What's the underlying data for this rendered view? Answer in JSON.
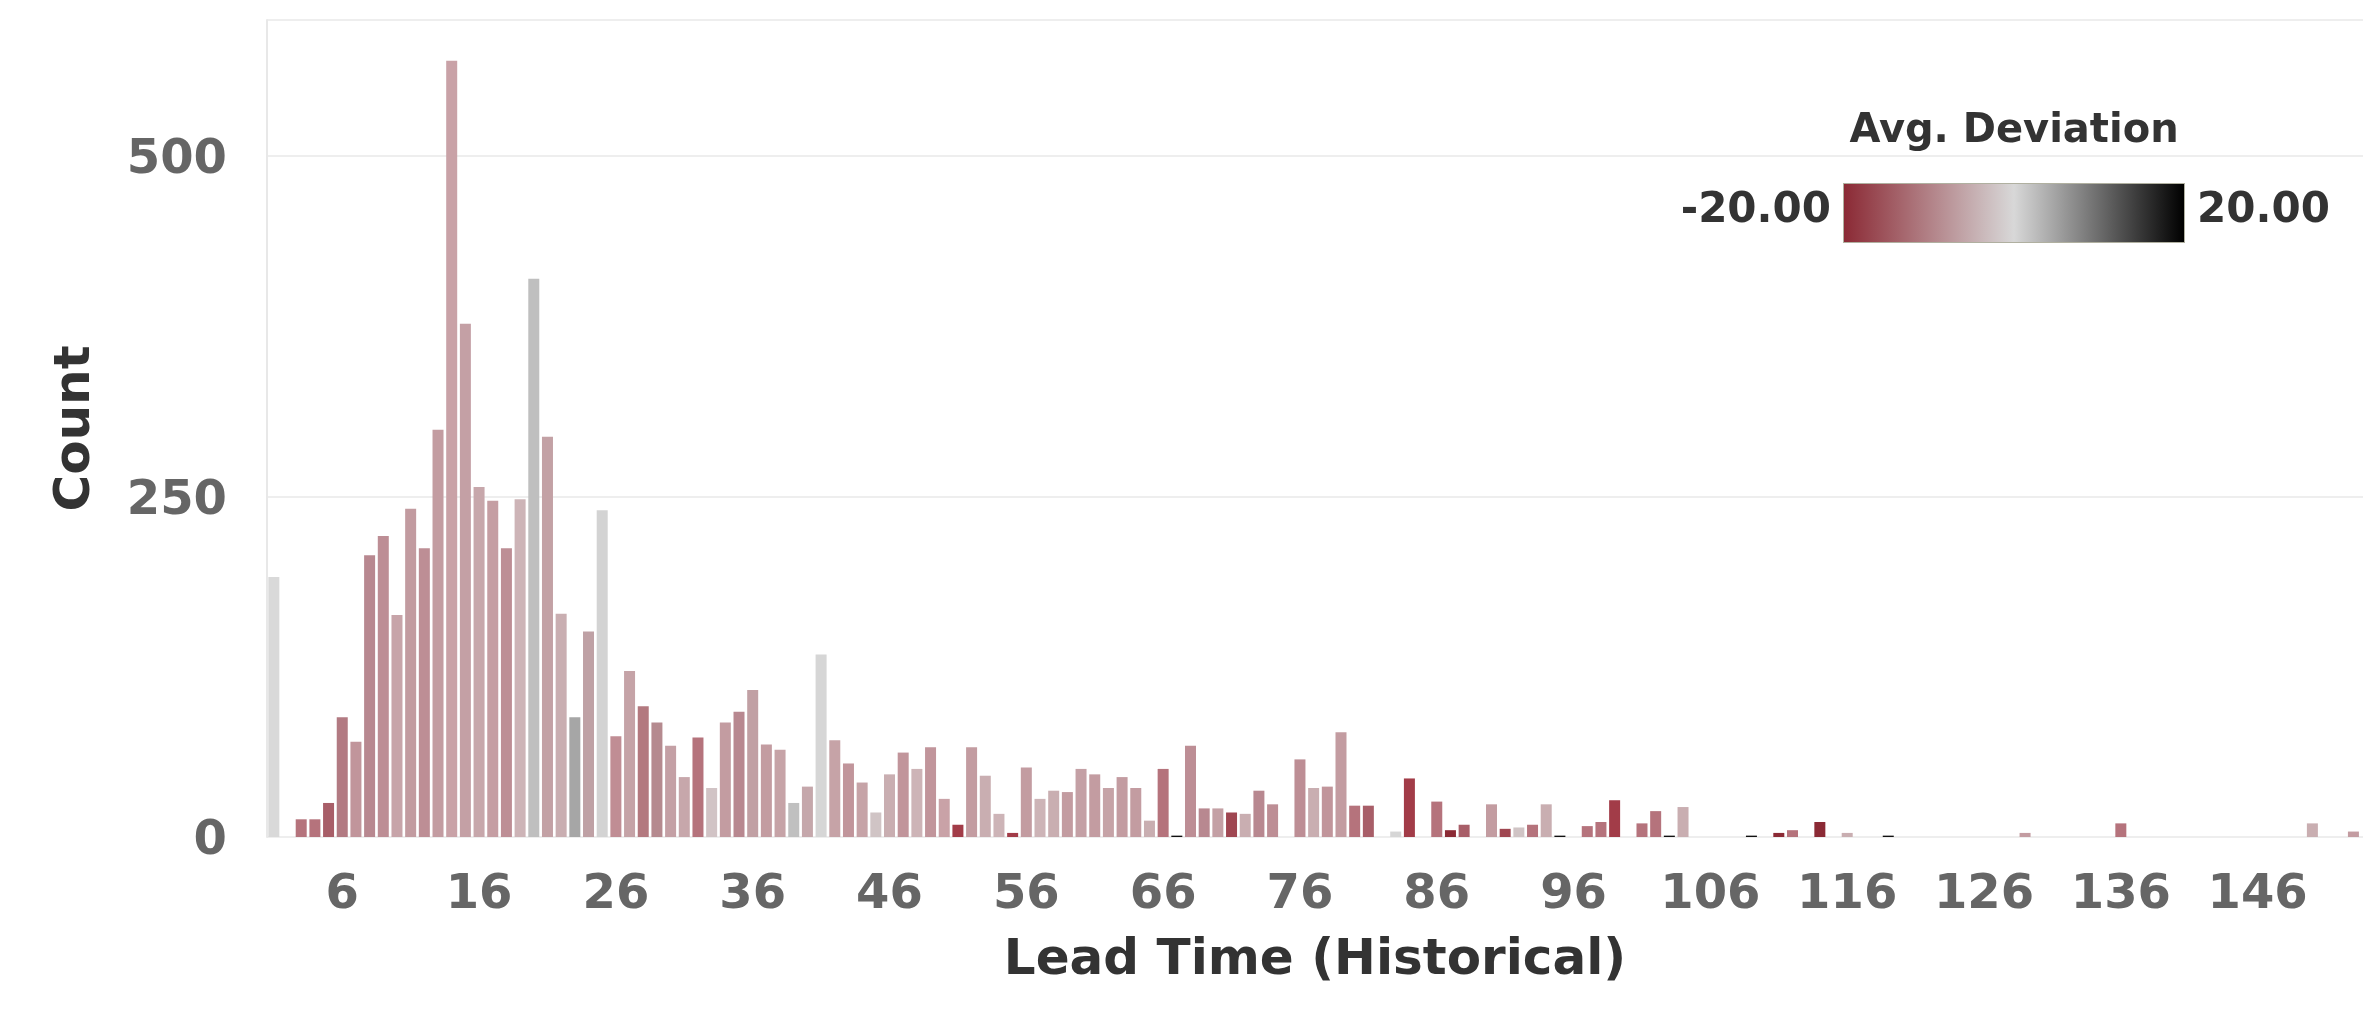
{
  "chart_data": {
    "type": "bar",
    "xlabel": "Lead Time (Historical)",
    "ylabel": "Count",
    "clabel": "Avg. Deviation",
    "annotations": [
      "-20.00",
      "20.00"
    ],
    "x": [
      1,
      3,
      4,
      5,
      6,
      7,
      8,
      9,
      10,
      11,
      12,
      13,
      14,
      15,
      16,
      17,
      18,
      19,
      20,
      21,
      22,
      23,
      24,
      25,
      26,
      27,
      28,
      29,
      30,
      31,
      32,
      33,
      34,
      35,
      36,
      37,
      38,
      39,
      40,
      41,
      42,
      43,
      44,
      45,
      46,
      47,
      48,
      49,
      50,
      51,
      52,
      53,
      54,
      55,
      56,
      57,
      58,
      59,
      60,
      61,
      62,
      63,
      64,
      65,
      66,
      67,
      68,
      69,
      70,
      71,
      72,
      73,
      74,
      76,
      77,
      78,
      79,
      80,
      81,
      83,
      84,
      86,
      87,
      88,
      90,
      91,
      92,
      93,
      94,
      95,
      97,
      98,
      99,
      101,
      102,
      103,
      104,
      109,
      111,
      112,
      114,
      116,
      119,
      129,
      136,
      150,
      153
    ],
    "values": [
      191,
      13,
      13,
      25,
      88,
      70,
      207,
      221,
      163,
      241,
      212,
      299,
      570,
      377,
      257,
      247,
      212,
      248,
      410,
      294,
      164,
      88,
      151,
      240,
      74,
      122,
      96,
      84,
      67,
      44,
      73,
      36,
      84,
      92,
      108,
      68,
      64,
      25,
      37,
      134,
      71,
      54,
      40,
      18,
      46,
      62,
      50,
      66,
      28,
      9,
      66,
      45,
      17,
      3,
      51,
      28,
      34,
      33,
      50,
      46,
      36,
      44,
      36,
      12,
      50,
      1,
      67,
      21,
      21,
      18,
      17,
      34,
      24,
      57,
      36,
      37,
      77,
      23,
      23,
      4,
      43,
      26,
      5,
      9,
      24,
      6,
      7,
      9,
      24,
      1,
      8,
      11,
      27,
      10,
      19,
      1,
      22,
      1,
      3,
      5,
      11,
      3,
      1,
      3,
      10,
      10,
      4
    ],
    "colors": [
      "#d9d9d9",
      "#b5737c",
      "#b5737c",
      "#a85e68",
      "#b27a82",
      "#c1959b",
      "#b88890",
      "#bd8e95",
      "#c7a4a9",
      "#c29ba0",
      "#bd8e95",
      "#c39ca1",
      "#c9a2a7",
      "#c4a0a5",
      "#c7a7ab",
      "#c59ea3",
      "#bd8e95",
      "#cdb4b7",
      "#bfbfbf",
      "#c3a1a5",
      "#c9aeb1",
      "#a6a6a6",
      "#bfa1a5",
      "#d3d3d3",
      "#c08d94",
      "#c5a3a7",
      "#b3797f",
      "#b58a8f",
      "#c4a0a5",
      "#c7a7ab",
      "#b5737c",
      "#d1c3c5",
      "#c39ca1",
      "#b88890",
      "#c1a0a4",
      "#c39ca1",
      "#c6a3a7",
      "#c0c0c0",
      "#c5a7ab",
      "#d6d6d6",
      "#c6a3a7",
      "#c1959b",
      "#c6a3a7",
      "#d0c4c5",
      "#c9aeb1",
      "#c1959b",
      "#cdb4b7",
      "#c1959b",
      "#c9a2a7",
      "#a23c48",
      "#c39ca1",
      "#c9aeb1",
      "#cdb4b7",
      "#a23c48",
      "#c39ca1",
      "#cdb4b7",
      "#c9aeb1",
      "#c39ca1",
      "#c4a0a5",
      "#c39ca1",
      "#c6a3a7",
      "#c39ca1",
      "#c39ca1",
      "#c9aeb1",
      "#b5737c",
      "#111111",
      "#bd8e95",
      "#b88890",
      "#c4a0a5",
      "#9f4651",
      "#c9aeb1",
      "#b88890",
      "#bd8e95",
      "#bd8e95",
      "#c9aeb1",
      "#c1959b",
      "#c39ca1",
      "#b5737c",
      "#a85e68",
      "#d6d6d6",
      "#a23c48",
      "#b5737c",
      "#8b2a35",
      "#a85e68",
      "#c39ca1",
      "#9f4651",
      "#d0c4c5",
      "#b5737c",
      "#c9aeb1",
      "#111111",
      "#b5737c",
      "#b5737c",
      "#a23c48",
      "#b5737c",
      "#b5737c",
      "#111111",
      "#c9aeb1",
      "#111111",
      "#8b2a35",
      "#b5737c",
      "#8b2a35",
      "#c9aeb1",
      "#111111",
      "#c39ca1",
      "#b5737c",
      "#c9aeb1",
      "#c39ca1"
    ],
    "xlim": [
      0.5,
      153.7
    ],
    "xticks": [
      6,
      16,
      26,
      36,
      46,
      56,
      66,
      76,
      86,
      96,
      106,
      116,
      126,
      136,
      146
    ],
    "ylim": [
      0,
      600
    ],
    "yticks": [
      0,
      250,
      500
    ],
    "grid": "y"
  }
}
